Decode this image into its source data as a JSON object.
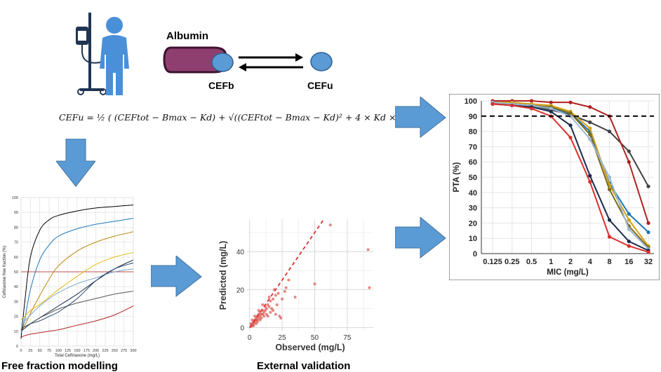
{
  "binding_scheme": {
    "protein_label": "Albumin",
    "bound_label": "CEFb",
    "unbound_label": "CEFu"
  },
  "formula": {
    "text": "CEFu = ½ ( (CEFtot − Bmax − Kd) + √((CEFtot − Bmax − Kd)² + 4 × Kd × CEFtot) )"
  },
  "captions": {
    "free_fraction": "Free fraction modelling",
    "external_validation": "External validation"
  },
  "colors": {
    "albumin": "#8e3f6f",
    "ligand": "#5b9bd5",
    "arrow": "#5b9bd5",
    "person": "#4a90d9",
    "drip": "#1f3552"
  },
  "icons": [
    "person-with-iv-drip-icon",
    "arrow-right-icon",
    "arrow-down-icon",
    "equilibrium-arrows-icon"
  ],
  "chart_data": [
    {
      "id": "free-fraction",
      "type": "line",
      "title": "",
      "xlabel": "Total Ceftriaxone (mg/L)",
      "ylabel": "Ceftriaxone free fraction (%)",
      "xlim": [
        0,
        300
      ],
      "ylim": [
        0,
        100
      ],
      "x_ticks": [
        "0",
        "25",
        "50",
        "75",
        "100",
        "125",
        "150",
        "175",
        "200",
        "225",
        "250",
        "275",
        "300"
      ],
      "y_ticks": [
        "0",
        "10",
        "20",
        "30",
        "40",
        "50",
        "60",
        "70",
        "80",
        "90",
        "100"
      ],
      "reference_line": {
        "y": 50,
        "color": "#c0504d"
      },
      "series": [
        {
          "color": "#000000",
          "x": [
            0,
            10,
            25,
            50,
            75,
            100,
            150,
            200,
            250,
            300
          ],
          "y": [
            5,
            30,
            60,
            78,
            85,
            88,
            91,
            93,
            94,
            95
          ]
        },
        {
          "color": "#1f77b4",
          "x": [
            0,
            10,
            25,
            50,
            75,
            100,
            150,
            200,
            250,
            300
          ],
          "y": [
            8,
            18,
            38,
            58,
            68,
            74,
            79,
            82,
            84,
            86
          ]
        },
        {
          "color": "#b8860b",
          "x": [
            0,
            10,
            25,
            50,
            75,
            100,
            150,
            200,
            250,
            300
          ],
          "y": [
            10,
            14,
            22,
            34,
            45,
            54,
            64,
            70,
            74,
            77
          ]
        },
        {
          "color": "#e6b800",
          "x": [
            0,
            10,
            25,
            50,
            75,
            100,
            150,
            200,
            250,
            300
          ],
          "y": [
            18,
            20,
            24,
            28,
            33,
            38,
            47,
            55,
            60,
            63
          ]
        },
        {
          "color": "#1a2a4a",
          "x": [
            0,
            10,
            25,
            50,
            75,
            100,
            150,
            200,
            250,
            300
          ],
          "y": [
            11,
            12,
            15,
            19,
            23,
            27,
            35,
            44,
            52,
            58
          ]
        },
        {
          "color": "#7fa7cc",
          "x": [
            0,
            10,
            25,
            50,
            75,
            100,
            150,
            200,
            250,
            300
          ],
          "y": [
            15,
            17,
            21,
            27,
            32,
            36,
            42,
            46,
            50,
            52
          ]
        },
        {
          "color": "#555555",
          "x": [
            0,
            10,
            25,
            50,
            75,
            100,
            150,
            200,
            250,
            300
          ],
          "y": [
            10,
            12,
            15,
            19,
            22,
            25,
            29,
            32,
            35,
            37
          ]
        },
        {
          "color": "#26466d",
          "x": [
            0,
            10,
            25,
            50,
            75,
            100,
            150,
            200,
            250,
            300
          ],
          "y": [
            12,
            13,
            15,
            17,
            20,
            23,
            32,
            44,
            52,
            56
          ]
        },
        {
          "color": "#b22222",
          "x": [
            0,
            10,
            25,
            50,
            75,
            100,
            150,
            200,
            250,
            300
          ],
          "y": [
            6,
            7,
            8,
            9,
            10,
            11,
            14,
            17,
            21,
            27
          ]
        }
      ]
    },
    {
      "id": "external-validation",
      "type": "scatter",
      "title": "",
      "xlabel": "Observed (mg/L)",
      "ylabel": "Predicted (mg/L)",
      "xlim": [
        -2,
        95
      ],
      "ylim": [
        -2,
        57
      ],
      "x_ticks": [
        "0",
        "25",
        "50",
        "75"
      ],
      "y_ticks": [
        "0",
        "20",
        "40"
      ],
      "identity_line": {
        "from": [
          0,
          0
        ],
        "to": [
          57,
          57
        ],
        "color": "#d9302c"
      },
      "points": [
        [
          1,
          0.5
        ],
        [
          2,
          1
        ],
        [
          2,
          2
        ],
        [
          3,
          2
        ],
        [
          3,
          3
        ],
        [
          4,
          3
        ],
        [
          4,
          4
        ],
        [
          5,
          4
        ],
        [
          5,
          5
        ],
        [
          6,
          4
        ],
        [
          6,
          6
        ],
        [
          7,
          5
        ],
        [
          7,
          7
        ],
        [
          8,
          6
        ],
        [
          8,
          8
        ],
        [
          9,
          7
        ],
        [
          10,
          7
        ],
        [
          10,
          9
        ],
        [
          11,
          8
        ],
        [
          12,
          9
        ],
        [
          12,
          11
        ],
        [
          13,
          10
        ],
        [
          14,
          12
        ],
        [
          15,
          11
        ],
        [
          15,
          16
        ],
        [
          16,
          14
        ],
        [
          17,
          10
        ],
        [
          18,
          15
        ],
        [
          19,
          20
        ],
        [
          20,
          17
        ],
        [
          21,
          12
        ],
        [
          22,
          18
        ],
        [
          23,
          6
        ],
        [
          24,
          5
        ],
        [
          25,
          15
        ],
        [
          27,
          19
        ],
        [
          28,
          21
        ],
        [
          30,
          25
        ],
        [
          35,
          16
        ],
        [
          50,
          23
        ],
        [
          62,
          54
        ],
        [
          91,
          41
        ],
        [
          92,
          21
        ],
        [
          3,
          1
        ],
        [
          5,
          2
        ],
        [
          6,
          3
        ],
        [
          8,
          4
        ],
        [
          9,
          5
        ],
        [
          11,
          6
        ],
        [
          13,
          7
        ],
        [
          4,
          6
        ],
        [
          7,
          9
        ],
        [
          10,
          12
        ],
        [
          14,
          6
        ],
        [
          16,
          8
        ],
        [
          18,
          9
        ],
        [
          20,
          7
        ],
        [
          1,
          2
        ],
        [
          2,
          4
        ]
      ]
    },
    {
      "id": "pta",
      "type": "line",
      "title": "",
      "xlabel": "MIC (mg/L)",
      "ylabel": "PTA (%)",
      "categories": [
        "0.125",
        "0.25",
        "0.5",
        "1",
        "2",
        "4",
        "8",
        "16",
        "32"
      ],
      "ylim": [
        0,
        100
      ],
      "y_ticks": [
        "0",
        "10",
        "20",
        "30",
        "40",
        "50",
        "60",
        "70",
        "80",
        "90",
        "100"
      ],
      "target_line": {
        "y": 90,
        "style": "dashed"
      },
      "series": [
        {
          "color": "#404040",
          "values": [
            99,
            98,
            97,
            94,
            91,
            86,
            80,
            67,
            44
          ]
        },
        {
          "color": "#b22222",
          "values": [
            100,
            100,
            100,
            99,
            99,
            96,
            90,
            60,
            20
          ]
        },
        {
          "color": "#1f77b4",
          "values": [
            99,
            98,
            97,
            95,
            92,
            80,
            46,
            26,
            14
          ]
        },
        {
          "color": "#d4a017",
          "values": [
            99,
            99,
            98,
            97,
            93,
            82,
            45,
            22,
            5
          ]
        },
        {
          "color": "#7a6a1a",
          "values": [
            98,
            98,
            97,
            96,
            92,
            78,
            42,
            18,
            4
          ]
        },
        {
          "color": "#9bb7d4",
          "values": [
            99,
            98,
            97,
            95,
            90,
            75,
            50,
            16,
            3
          ]
        },
        {
          "color": "#1a2a4a",
          "values": [
            98,
            97,
            96,
            93,
            84,
            51,
            22,
            8,
            2
          ]
        },
        {
          "color": "#d9302c",
          "values": [
            98,
            97,
            95,
            90,
            76,
            47,
            11,
            5,
            1
          ]
        }
      ]
    }
  ]
}
